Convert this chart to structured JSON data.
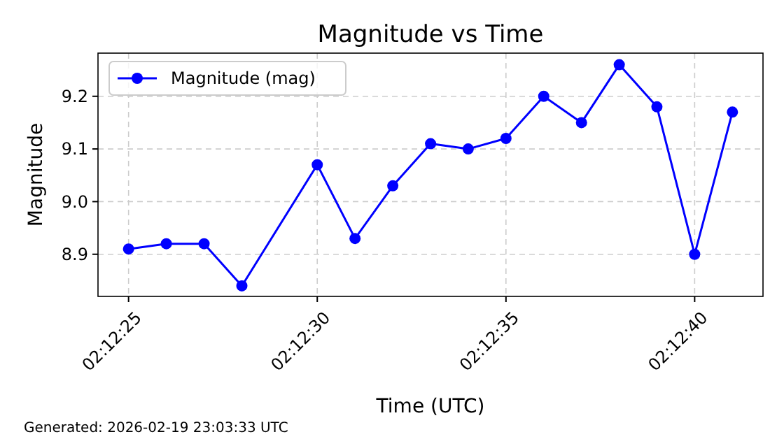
{
  "chart_data": {
    "type": "line",
    "title": "Magnitude vs Time",
    "xlabel": "Time (UTC)",
    "ylabel": "Magnitude",
    "annotations": [
      "Generated: 2026-02-19 23:03:33 UTC"
    ],
    "x": [
      2.206944,
      2.207222,
      2.2075,
      2.207778,
      2.208333,
      2.208611,
      2.208889,
      2.209167,
      2.209444,
      2.209722,
      2.21,
      2.210278,
      2.210556,
      2.210833,
      2.211111,
      2.211389
    ],
    "series": [
      {
        "name": "Magnitude (mag)",
        "color": "#0000ff",
        "values": [
          8.91,
          8.92,
          8.92,
          8.84,
          9.07,
          8.93,
          9.03,
          9.11,
          9.1,
          9.12,
          9.2,
          9.15,
          9.26,
          9.18,
          8.9,
          9.17
        ]
      }
    ],
    "xlim": [
      2.206719,
      2.211614
    ],
    "xticks": [
      {
        "value": 2.206944,
        "label": "02:12:25"
      },
      {
        "value": 2.208333,
        "label": "02:12:30"
      },
      {
        "value": 2.209722,
        "label": "02:12:35"
      },
      {
        "value": 2.211111,
        "label": "02:12:40"
      }
    ],
    "ylim": [
      8.82,
      9.282
    ],
    "yticks": [
      8.9,
      {
        "value": 9,
        "label": "9.0"
      },
      9.1,
      9.2
    ],
    "grid": true,
    "legend": "top left",
    "marker": "circle",
    "line_style": "solid"
  }
}
